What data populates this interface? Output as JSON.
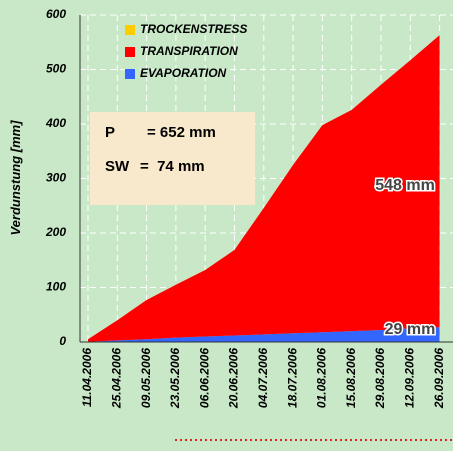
{
  "chart_data": {
    "type": "stacked_area",
    "y_label": "Verdunstung [mm]",
    "categories": [
      "11.04.2006",
      "25.04.2006",
      "09.05.2006",
      "23.05.2006",
      "06.06.2006",
      "20.06.2006",
      "04.07.2006",
      "18.07.2006",
      "01.08.2006",
      "15.08.2006",
      "29.08.2006",
      "12.09.2006",
      "26.09.2006"
    ],
    "series": [
      {
        "name": "EVAPORATION",
        "color": "#3366ff",
        "values": [
          0.5,
          3,
          5,
          8,
          10,
          12,
          14,
          16,
          18,
          20,
          22,
          25,
          27
        ]
      },
      {
        "name": "TRANSPIRATION",
        "color": "#ff0000",
        "values": [
          4.5,
          37,
          72,
          97,
          122,
          157,
          232,
          309,
          380,
          406,
          450,
          492,
          536
        ]
      },
      {
        "name": "TROCKENSTRESS",
        "color": "#ffcc00",
        "values": [
          0,
          0,
          0,
          0,
          0,
          0,
          0,
          0,
          0,
          0,
          0,
          0,
          0
        ]
      }
    ],
    "legend_order": [
      "TROCKENSTRESS",
      "TRANSPIRATION",
      "EVAPORATION"
    ],
    "ylim": [
      0,
      600
    ],
    "yticks": [
      0,
      100,
      200,
      300,
      400,
      500,
      600
    ],
    "grid": true,
    "info_box": [
      [
        "P",
        "= 652 mm"
      ],
      [
        "SW",
        "=  74 mm"
      ]
    ],
    "annotations": [
      "548 mm",
      "29 mm"
    ]
  }
}
